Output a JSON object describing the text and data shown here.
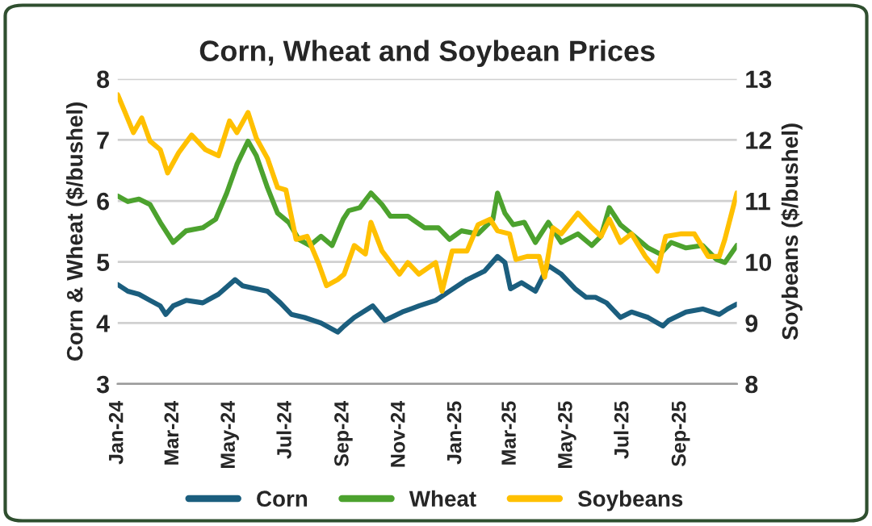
{
  "chart_data": {
    "type": "line",
    "title": "Corn, Wheat and Soybean Prices",
    "ylabel": "Corn & Wheat ($/bushel)",
    "y2label": "Soybeans ($/bushel)",
    "xlim": [
      "2024-01-01",
      "2025-11-01"
    ],
    "xticks": [
      {
        "value": "2024-01-01",
        "label": "Jan-24"
      },
      {
        "value": "2024-03-01",
        "label": "Mar-24"
      },
      {
        "value": "2024-05-01",
        "label": "May-24"
      },
      {
        "value": "2024-07-01",
        "label": "Jul-24"
      },
      {
        "value": "2024-09-01",
        "label": "Sep-24"
      },
      {
        "value": "2024-11-01",
        "label": "Nov-24"
      },
      {
        "value": "2025-01-01",
        "label": "Jan-25"
      },
      {
        "value": "2025-03-01",
        "label": "Mar-25"
      },
      {
        "value": "2025-05-01",
        "label": "May-25"
      },
      {
        "value": "2025-07-01",
        "label": "Jul-25"
      },
      {
        "value": "2025-09-01",
        "label": "Sep-25"
      }
    ],
    "ylim": [
      3,
      8
    ],
    "yticks": [
      3,
      4,
      5,
      6,
      7,
      8
    ],
    "y2lim": [
      8,
      13
    ],
    "y2ticks": [
      8,
      9,
      10,
      11,
      12,
      13
    ],
    "grid": "y",
    "legend": "bottom",
    "marker": "none",
    "line_style": "solid",
    "series": [
      {
        "name": "Corn",
        "color": "#1b5e7e",
        "x": [
          "2024-01-01",
          "2024-01-12",
          "2024-01-24",
          "2024-02-05",
          "2024-02-16",
          "2024-02-22",
          "2024-03-01",
          "2024-03-15",
          "2024-04-02",
          "2024-04-19",
          "2024-05-07",
          "2024-05-15",
          "2024-05-30",
          "2024-06-11",
          "2024-06-25",
          "2024-07-07",
          "2024-07-21",
          "2024-08-08",
          "2024-08-26",
          "2024-09-02",
          "2024-09-13",
          "2024-10-03",
          "2024-10-16",
          "2024-11-04",
          "2024-11-22",
          "2024-12-10",
          "2024-12-25",
          "2025-01-13",
          "2025-02-01",
          "2025-02-15",
          "2025-02-23",
          "2025-03-01",
          "2025-03-13",
          "2025-03-28",
          "2025-04-11",
          "2025-04-25",
          "2025-05-10",
          "2025-05-22",
          "2025-06-01",
          "2025-06-13",
          "2025-06-28",
          "2025-07-10",
          "2025-07-28",
          "2025-08-13",
          "2025-08-19",
          "2025-09-07",
          "2025-09-25",
          "2025-10-13",
          "2025-10-22",
          "2025-11-01"
        ],
        "values": [
          4.63,
          4.52,
          4.47,
          4.37,
          4.28,
          4.14,
          4.28,
          4.37,
          4.33,
          4.47,
          4.71,
          4.61,
          4.56,
          4.52,
          4.33,
          4.14,
          4.09,
          4.0,
          3.85,
          3.95,
          4.09,
          4.28,
          4.04,
          4.18,
          4.28,
          4.37,
          4.52,
          4.71,
          4.85,
          5.09,
          4.99,
          4.56,
          4.66,
          4.52,
          4.94,
          4.8,
          4.56,
          4.42,
          4.42,
          4.33,
          4.09,
          4.18,
          4.09,
          3.95,
          4.04,
          4.18,
          4.23,
          4.14,
          4.23,
          4.31
        ]
      },
      {
        "name": "Wheat",
        "color": "#4ca22e",
        "x": [
          "2024-01-01",
          "2024-01-12",
          "2024-01-24",
          "2024-02-05",
          "2024-02-16",
          "2024-03-01",
          "2024-03-15",
          "2024-04-02",
          "2024-04-16",
          "2024-04-28",
          "2024-05-09",
          "2024-05-21",
          "2024-05-30",
          "2024-06-11",
          "2024-06-22",
          "2024-07-04",
          "2024-07-15",
          "2024-07-27",
          "2024-08-08",
          "2024-08-20",
          "2024-09-01",
          "2024-09-07",
          "2024-09-19",
          "2024-10-01",
          "2024-10-13",
          "2024-10-22",
          "2024-11-10",
          "2024-11-28",
          "2024-12-13",
          "2024-12-25",
          "2025-01-07",
          "2025-01-25",
          "2025-02-10",
          "2025-02-15",
          "2025-02-23",
          "2025-03-04",
          "2025-03-16",
          "2025-03-28",
          "2025-04-11",
          "2025-04-25",
          "2025-05-13",
          "2025-05-28",
          "2025-06-07",
          "2025-06-16",
          "2025-06-28",
          "2025-07-10",
          "2025-07-28",
          "2025-08-10",
          "2025-08-22",
          "2025-09-07",
          "2025-09-25",
          "2025-10-10",
          "2025-10-19",
          "2025-11-01"
        ],
        "values": [
          6.08,
          5.99,
          6.03,
          5.94,
          5.65,
          5.32,
          5.51,
          5.56,
          5.7,
          6.13,
          6.6,
          6.98,
          6.74,
          6.22,
          5.8,
          5.65,
          5.37,
          5.27,
          5.42,
          5.27,
          5.7,
          5.84,
          5.89,
          6.13,
          5.94,
          5.75,
          5.75,
          5.56,
          5.56,
          5.37,
          5.51,
          5.46,
          5.7,
          6.13,
          5.8,
          5.61,
          5.65,
          5.32,
          5.65,
          5.32,
          5.46,
          5.27,
          5.42,
          5.89,
          5.61,
          5.46,
          5.23,
          5.13,
          5.32,
          5.23,
          5.27,
          5.04,
          4.99,
          5.27
        ]
      },
      {
        "name": "Soybeans",
        "color": "#ffc000",
        "axis": "y2",
        "x": [
          "2024-01-01",
          "2024-01-09",
          "2024-01-18",
          "2024-01-27",
          "2024-02-05",
          "2024-02-16",
          "2024-02-24",
          "2024-03-07",
          "2024-03-21",
          "2024-04-05",
          "2024-04-19",
          "2024-05-01",
          "2024-05-09",
          "2024-05-21",
          "2024-05-30",
          "2024-06-11",
          "2024-06-22",
          "2024-07-01",
          "2024-07-12",
          "2024-07-24",
          "2024-08-05",
          "2024-08-14",
          "2024-08-26",
          "2024-09-02",
          "2024-09-13",
          "2024-09-25",
          "2024-10-01",
          "2024-10-13",
          "2024-11-01",
          "2024-11-10",
          "2024-11-22",
          "2024-12-10",
          "2024-12-17",
          "2024-12-28",
          "2025-01-13",
          "2025-01-25",
          "2025-02-07",
          "2025-02-15",
          "2025-02-28",
          "2025-03-07",
          "2025-03-19",
          "2025-04-01",
          "2025-04-07",
          "2025-04-16",
          "2025-04-25",
          "2025-05-13",
          "2025-05-28",
          "2025-06-07",
          "2025-06-16",
          "2025-06-28",
          "2025-07-10",
          "2025-07-25",
          "2025-08-07",
          "2025-08-16",
          "2025-09-01",
          "2025-09-16",
          "2025-10-01",
          "2025-10-13",
          "2025-10-19",
          "2025-11-01"
        ],
        "values": [
          12.74,
          12.45,
          12.12,
          12.36,
          11.98,
          11.84,
          11.46,
          11.79,
          12.08,
          11.84,
          11.74,
          12.31,
          12.12,
          12.45,
          12.03,
          11.7,
          11.22,
          11.18,
          10.37,
          10.42,
          9.99,
          9.61,
          9.71,
          9.8,
          10.27,
          10.13,
          10.65,
          10.18,
          9.8,
          9.99,
          9.8,
          9.99,
          9.52,
          10.18,
          10.18,
          10.61,
          10.7,
          10.51,
          10.46,
          10.04,
          10.09,
          10.09,
          9.75,
          10.56,
          10.46,
          10.8,
          10.56,
          10.42,
          10.7,
          10.32,
          10.46,
          10.09,
          9.85,
          10.42,
          10.46,
          10.46,
          10.09,
          10.09,
          10.37,
          11.13
        ]
      }
    ]
  }
}
